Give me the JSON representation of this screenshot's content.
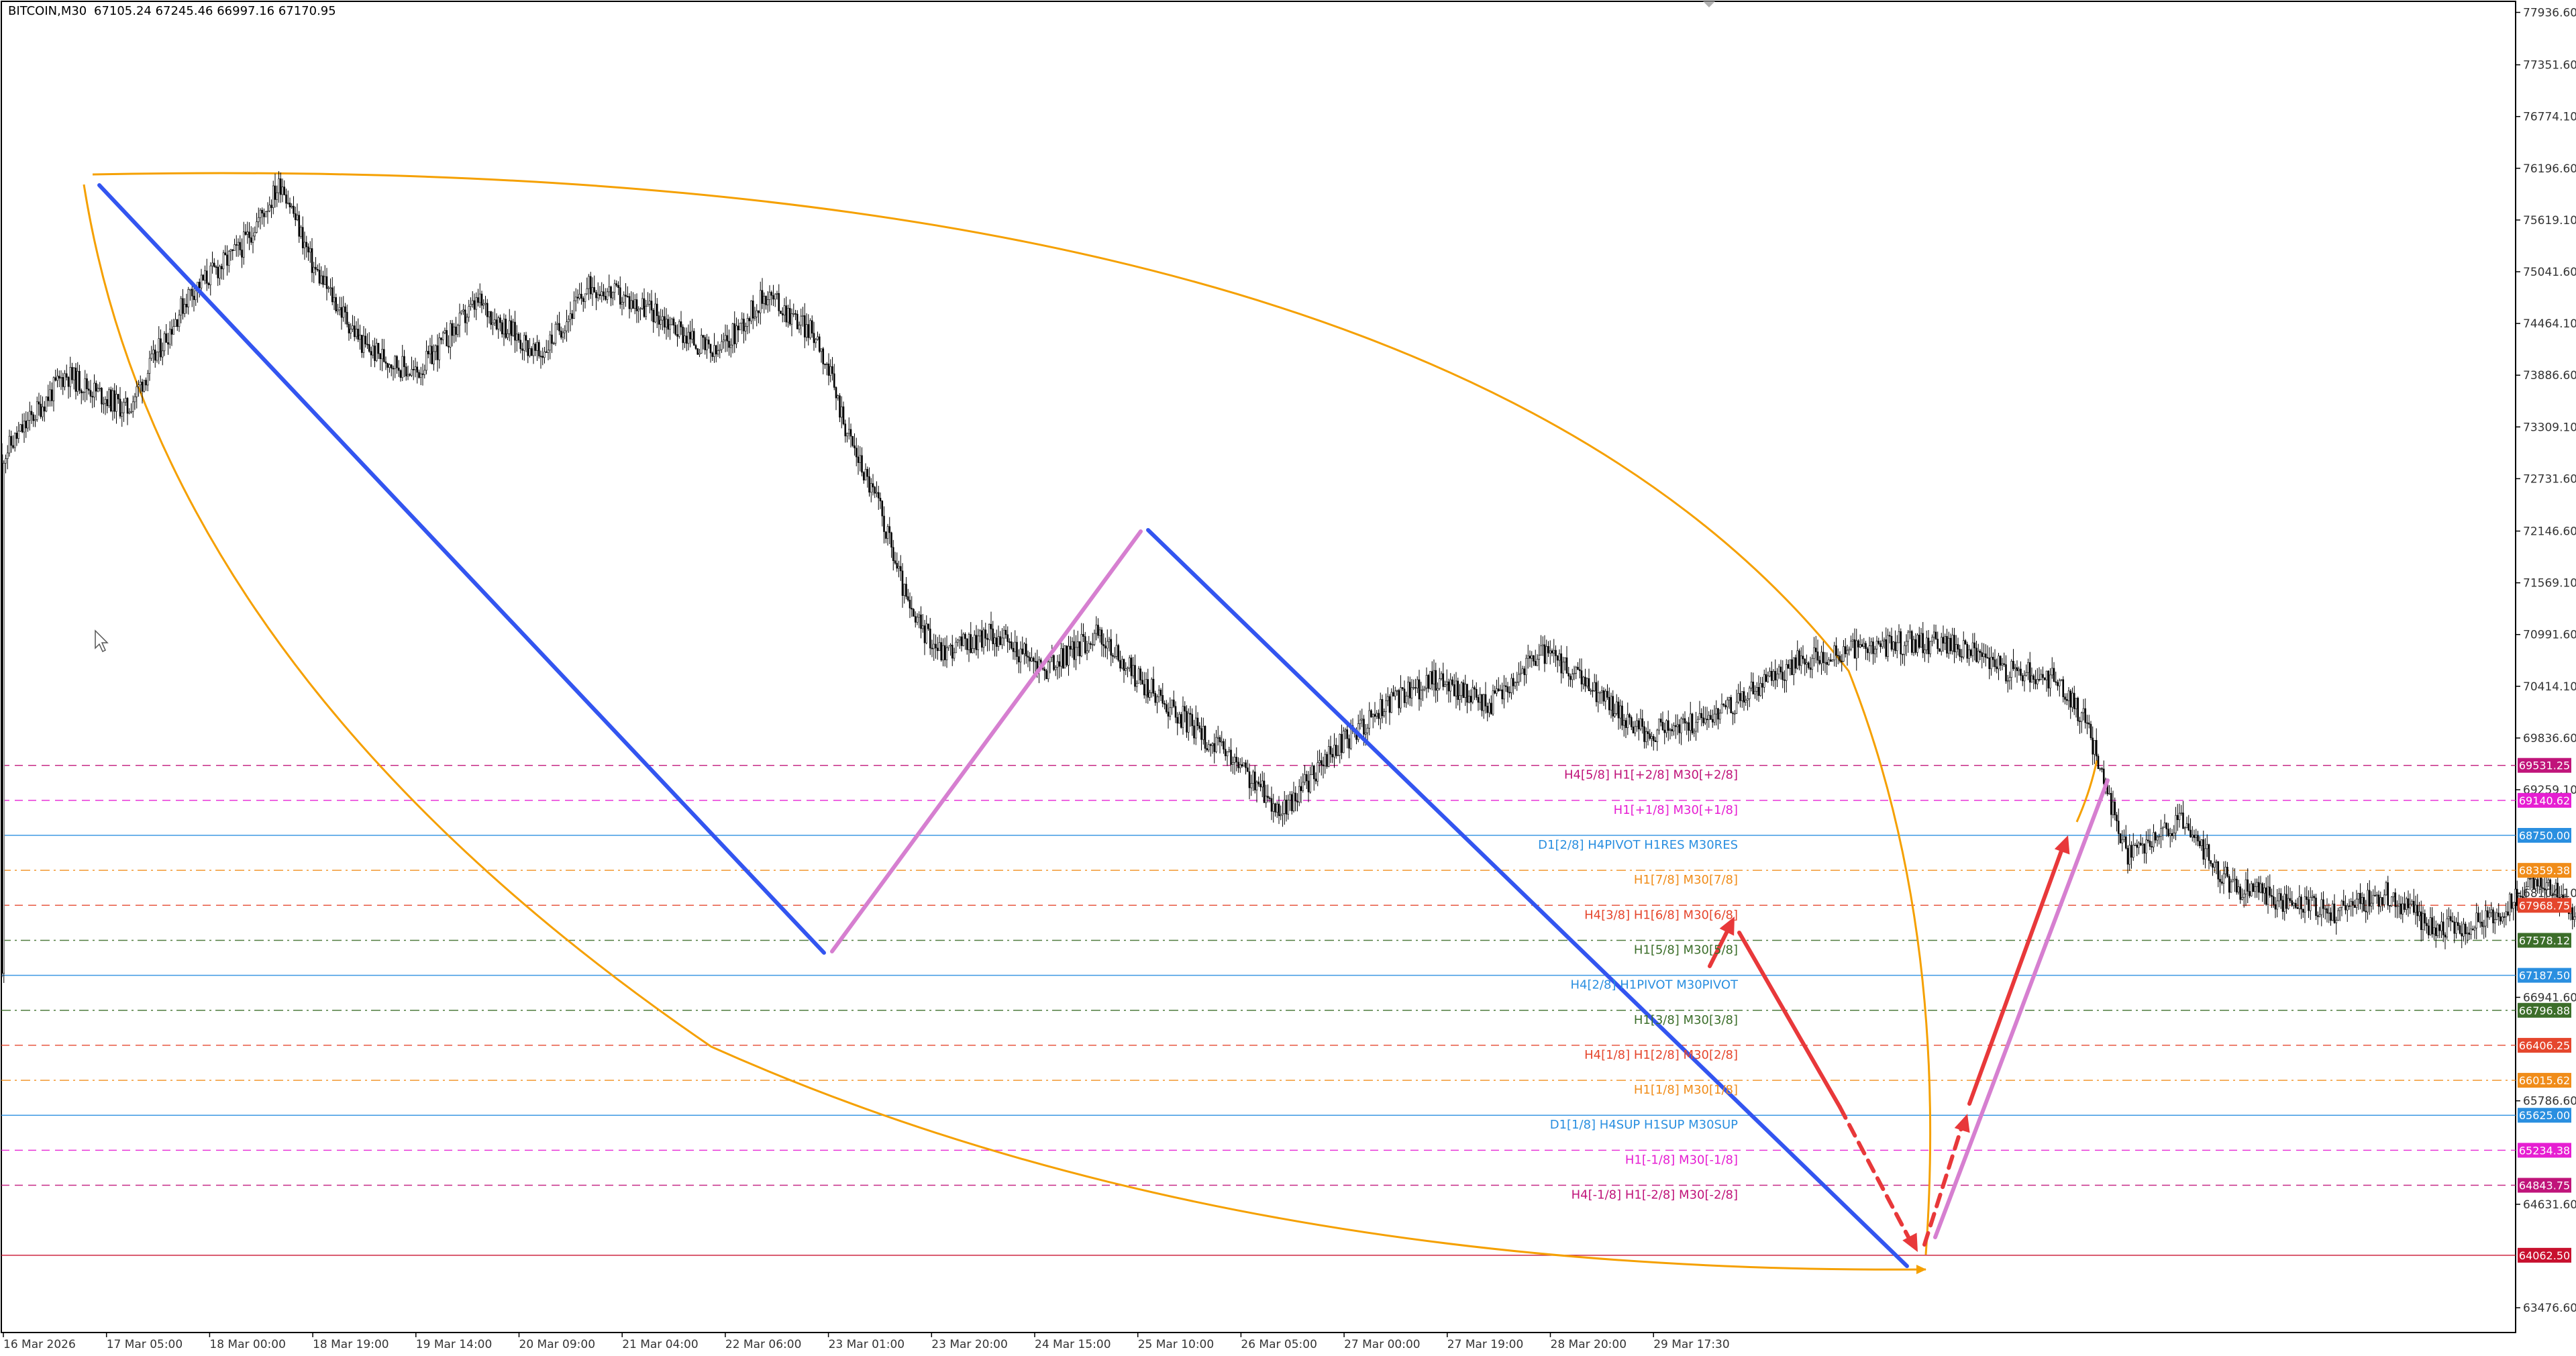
{
  "header": {
    "symbol": "BITCOIN,M30",
    "ohlc": "67105.24 67245.46 66997.16 67170.95"
  },
  "chart_data": {
    "type": "candlestick",
    "symbol": "BITCOIN",
    "timeframe": "M30",
    "grid": false,
    "ylim": [
      63200,
      78060
    ],
    "y_ticks": [
      77936.6,
      77351.6,
      76774.1,
      76196.6,
      75619.1,
      75041.6,
      74464.1,
      73886.6,
      73309.1,
      72731.6,
      72146.6,
      71569.1,
      70991.6,
      70414.1,
      69836.6,
      69259.1,
      68104.1,
      66941.6,
      65786.6,
      64631.6,
      63476.6
    ],
    "x_ticks": [
      "16 Mar 2026",
      "17 Mar 05:00",
      "18 Mar 00:00",
      "18 Mar 19:00",
      "19 Mar 14:00",
      "20 Mar 09:00",
      "21 Mar 04:00",
      "22 Mar 06:00",
      "23 Mar 01:00",
      "23 Mar 20:00",
      "24 Mar 15:00",
      "25 Mar 10:00",
      "26 Mar 05:00",
      "27 Mar 00:00",
      "27 Mar 19:00",
      "28 Mar 20:00",
      "29 Mar 17:30"
    ],
    "price_path": [
      [
        0,
        73000
      ],
      [
        0.6,
        73900
      ],
      [
        1.2,
        73500
      ],
      [
        1.8,
        74800
      ],
      [
        2.3,
        75300
      ],
      [
        2.7,
        76050
      ],
      [
        3.0,
        75100
      ],
      [
        3.5,
        74200
      ],
      [
        4.0,
        73900
      ],
      [
        4.6,
        74700
      ],
      [
        5.2,
        74100
      ],
      [
        5.7,
        74900
      ],
      [
        6.3,
        74600
      ],
      [
        6.9,
        74100
      ],
      [
        7.4,
        74800
      ],
      [
        7.9,
        74300
      ],
      [
        8.2,
        73200
      ],
      [
        8.5,
        72400
      ],
      [
        8.8,
        71200
      ],
      [
        9.1,
        70800
      ],
      [
        9.6,
        71000
      ],
      [
        10.1,
        70600
      ],
      [
        10.6,
        71000
      ],
      [
        11.0,
        70500
      ],
      [
        11.5,
        70000
      ],
      [
        12.0,
        69500
      ],
      [
        12.4,
        69000
      ],
      [
        12.9,
        69700
      ],
      [
        13.4,
        70200
      ],
      [
        13.9,
        70500
      ],
      [
        14.4,
        70200
      ],
      [
        14.9,
        70800
      ],
      [
        15.4,
        70400
      ],
      [
        15.9,
        69900
      ],
      [
        16.4,
        70000
      ],
      [
        16.9,
        70300
      ],
      [
        17.4,
        70700
      ],
      [
        17.9,
        70800
      ],
      [
        18.4,
        70900
      ],
      [
        18.9,
        70900
      ],
      [
        19.4,
        70600
      ],
      [
        19.9,
        70500
      ],
      [
        20.2,
        70000
      ],
      [
        20.6,
        68500
      ],
      [
        21.1,
        68900
      ],
      [
        21.6,
        68200
      ],
      [
        22.1,
        68000
      ],
      [
        22.6,
        67900
      ],
      [
        23.1,
        68100
      ],
      [
        23.6,
        67700
      ],
      [
        24.1,
        67800
      ],
      [
        24.6,
        68300
      ],
      [
        25.1,
        67700
      ],
      [
        25.6,
        68300
      ],
      [
        26.0,
        71200
      ],
      [
        26.5,
        71500
      ],
      [
        27.0,
        70900
      ],
      [
        27.5,
        71000
      ],
      [
        28.0,
        70400
      ],
      [
        28.5,
        71200
      ],
      [
        29.0,
        71100
      ],
      [
        29.5,
        70800
      ],
      [
        30.0,
        70500
      ],
      [
        30.5,
        69500
      ],
      [
        31.0,
        69300
      ],
      [
        31.5,
        70100
      ],
      [
        32.0,
        70700
      ],
      [
        32.5,
        71000
      ],
      [
        33.0,
        71200
      ],
      [
        33.5,
        71500
      ],
      [
        33.9,
        72000
      ],
      [
        34.3,
        71800
      ],
      [
        34.8,
        71200
      ],
      [
        35.3,
        70900
      ],
      [
        35.8,
        71400
      ],
      [
        36.3,
        70700
      ],
      [
        36.8,
        70200
      ],
      [
        37.3,
        69600
      ],
      [
        37.8,
        69300
      ],
      [
        38.3,
        68500
      ],
      [
        38.8,
        68400
      ],
      [
        39.3,
        68700
      ],
      [
        39.8,
        68500
      ],
      [
        40.3,
        68300
      ],
      [
        40.8,
        68600
      ],
      [
        41.3,
        67600
      ],
      [
        41.6,
        66800
      ],
      [
        41.9,
        66200
      ],
      [
        42.3,
        65900
      ],
      [
        42.8,
        65800
      ],
      [
        43.3,
        66100
      ],
      [
        43.8,
        66200
      ],
      [
        44.3,
        66300
      ],
      [
        44.8,
        66500
      ],
      [
        45.3,
        67000
      ],
      [
        45.8,
        66800
      ],
      [
        46.3,
        66600
      ],
      [
        46.8,
        66700
      ],
      [
        47.3,
        66600
      ],
      [
        47.8,
        66800
      ],
      [
        48.3,
        66500
      ],
      [
        48.8,
        66600
      ],
      [
        49.3,
        66500
      ],
      [
        49.8,
        66300
      ],
      [
        50.3,
        66400
      ],
      [
        50.6,
        67200
      ],
      [
        50.9,
        67170
      ]
    ],
    "levels": [
      {
        "price": 69531.25,
        "label": "H4[5/8] H1[+2/8] M30[+2/8]",
        "tag": "69531.25",
        "color": "#c0147a",
        "style": "dash"
      },
      {
        "price": 69140.62,
        "label": "H1[+1/8] M30[+1/8]",
        "tag": "69140.62",
        "color": "#e61ed2",
        "style": "dash"
      },
      {
        "price": 68750.0,
        "label": "D1[2/8] H4PIVOT H1RES M30RES",
        "tag": "68750.00",
        "color": "#2a8fe0",
        "style": "solid"
      },
      {
        "price": 68359.38,
        "label": "H1[7/8] M30[7/8]",
        "tag": "68359.38",
        "color": "#f08c19",
        "style": "dashdot"
      },
      {
        "price": 67968.75,
        "label": "H4[3/8] H1[6/8] M30[6/8]",
        "tag": "67968.75",
        "color": "#e5462d",
        "style": "dash"
      },
      {
        "price": 67578.12,
        "label": "H1[5/8] M30[5/8]",
        "tag": "67578.12",
        "color": "#3c6e2a",
        "style": "dashdot"
      },
      {
        "price": 67187.5,
        "label": "H4[2/8] H1PIVOT M30PIVOT",
        "tag": "67187.50",
        "color": "#2a8fe0",
        "style": "solid"
      },
      {
        "price": 66796.88,
        "label": "H1[3/8] M30[3/8]",
        "tag": "66796.88",
        "color": "#3c6e2a",
        "style": "dashdot"
      },
      {
        "price": 66406.25,
        "label": "H4[1/8] H1[2/8] M30[2/8]",
        "tag": "66406.25",
        "color": "#e5462d",
        "style": "dash"
      },
      {
        "price": 66015.62,
        "label": "H1[1/8] M30[1/8]",
        "tag": "66015.62",
        "color": "#f08c19",
        "style": "dashdot"
      },
      {
        "price": 65625.0,
        "label": "D1[1/8] H4SUP H1SUP M30SUP",
        "tag": "65625.00",
        "color": "#2a8fe0",
        "style": "solid"
      },
      {
        "price": 65234.38,
        "label": "H1[-1/8] M30[-1/8]",
        "tag": "65234.38",
        "color": "#e61ed2",
        "style": "dash"
      },
      {
        "price": 64843.75,
        "label": "H4[-1/8] H1[-2/8] M30[-2/8]",
        "tag": "64843.75",
        "color": "#c0147a",
        "style": "dash"
      },
      {
        "price": 64062.5,
        "label": "",
        "tag": "64062.50",
        "color": "#c8102e",
        "style": "solid"
      }
    ],
    "current_price": 67170.95
  }
}
